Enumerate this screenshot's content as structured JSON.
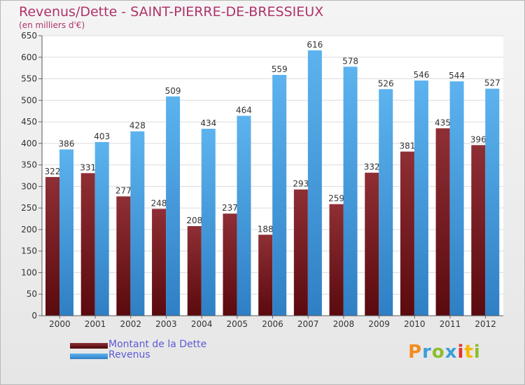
{
  "header": {
    "title": "Revenus/Dette - SAINT-PIERRE-DE-BRESSIEUX",
    "subtitle": "(en milliers d'€)"
  },
  "legend": {
    "items": [
      {
        "label": "Montant de la Dette",
        "color": "#6b0f14"
      },
      {
        "label": "Revenus",
        "color": "#3f97dc"
      }
    ]
  },
  "logo": {
    "text": "Proxiti",
    "colors": [
      "#f28c1e",
      "#3b9fd8",
      "#8cbe2c",
      "#3b9fd8",
      "#e3312d",
      "#f5b800",
      "#8cbe2c"
    ]
  },
  "colors": {
    "title": "#b0336a",
    "legend_text": "#5b5bd6",
    "debt": "#8c2a30",
    "revenue": "#4aa6e8"
  },
  "chart_data": {
    "type": "bar",
    "categories": [
      "2000",
      "2001",
      "2002",
      "2003",
      "2004",
      "2005",
      "2006",
      "2007",
      "2008",
      "2009",
      "2010",
      "2011",
      "2012"
    ],
    "series": [
      {
        "name": "Montant de la Dette",
        "values": [
          322,
          331,
          277,
          248,
          208,
          237,
          188,
          293,
          259,
          332,
          381,
          435,
          396
        ]
      },
      {
        "name": "Revenus",
        "values": [
          386,
          403,
          428,
          509,
          434,
          464,
          559,
          616,
          578,
          526,
          546,
          544,
          527
        ]
      }
    ],
    "ylim": [
      0,
      650
    ],
    "yticks": [
      0,
      50,
      100,
      150,
      200,
      250,
      300,
      350,
      400,
      450,
      500,
      550,
      600,
      650
    ],
    "grid": true,
    "legend": "bottom-left"
  }
}
